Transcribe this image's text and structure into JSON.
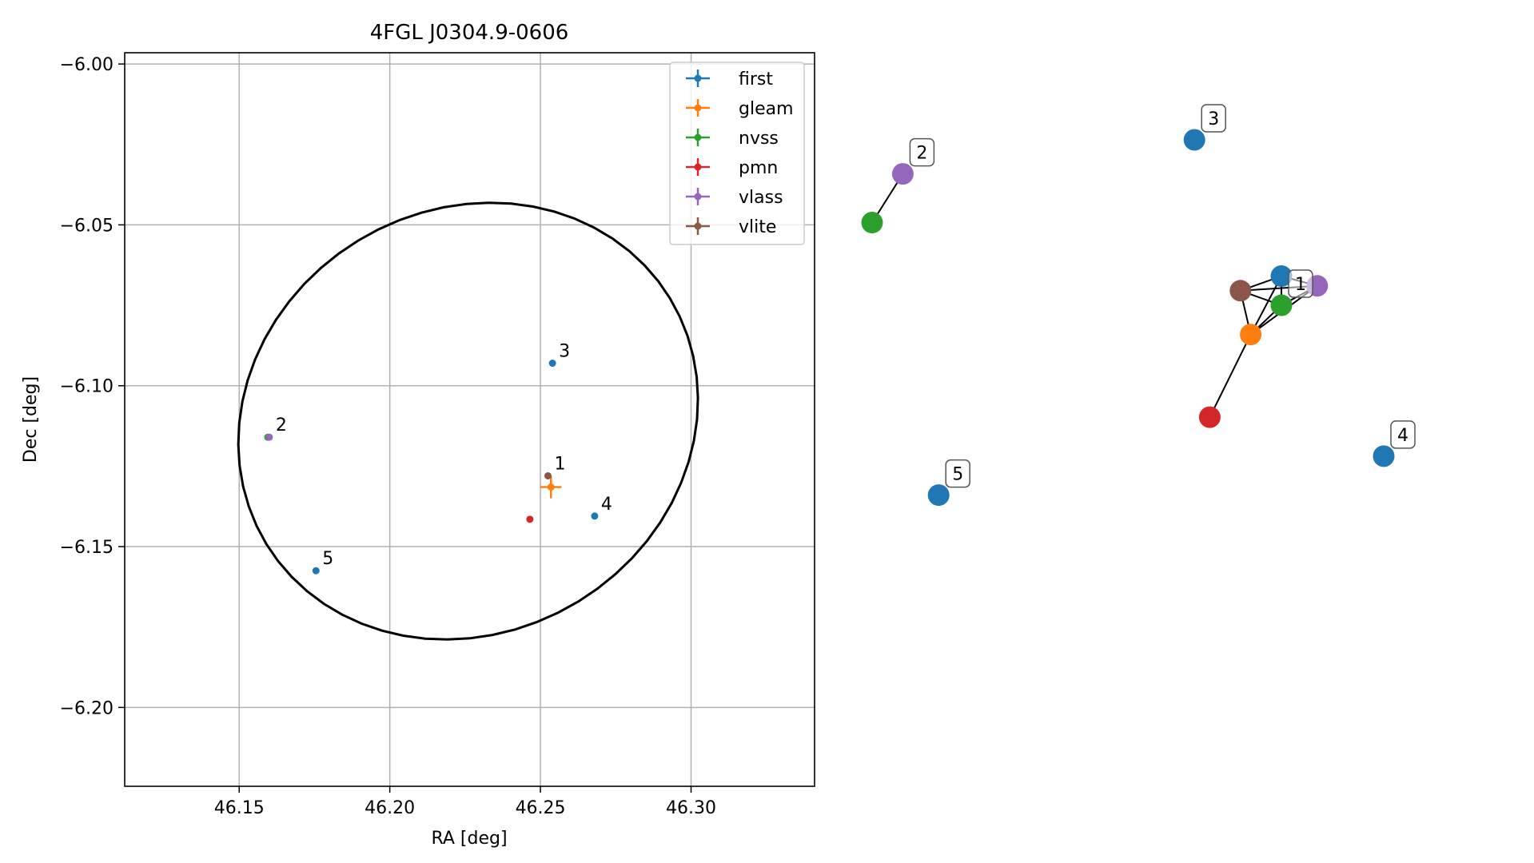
{
  "chart_data": [
    {
      "type": "scatter",
      "title": "4FGL J0304.9-0606",
      "xlabel": "RA [deg]",
      "ylabel": "Dec [deg]",
      "xlim": [
        46.112,
        46.341
      ],
      "ylim": [
        -6.2245,
        -5.9965
      ],
      "xticks": [
        46.15,
        46.2,
        46.25,
        46.3
      ],
      "xtick_labels": [
        "46.15",
        "46.20",
        "46.25",
        "46.30"
      ],
      "yticks": [
        -6.0,
        -6.05,
        -6.1,
        -6.15,
        -6.2
      ],
      "ytick_labels": [
        "−6.00",
        "−6.05",
        "−6.10",
        "−6.15",
        "−6.20"
      ],
      "grid": true,
      "legend_position": "top-right",
      "series": [
        {
          "name": "first",
          "color": "#1f77b4",
          "points": [
            {
              "x": 46.254,
              "y": -6.093,
              "xerr": 0.0006,
              "yerr": 0.0006
            },
            {
              "x": 46.268,
              "y": -6.1405,
              "xerr": 0.0006,
              "yerr": 0.0006
            },
            {
              "x": 46.1755,
              "y": -6.1575,
              "xerr": 0.0006,
              "yerr": 0.0006
            }
          ]
        },
        {
          "name": "gleam",
          "color": "#ff7f0e",
          "points": [
            {
              "x": 46.2535,
              "y": -6.1315,
              "xerr": 0.0035,
              "yerr": 0.0035
            }
          ]
        },
        {
          "name": "nvss",
          "color": "#2ca02c",
          "points": [
            {
              "x": 46.1595,
              "y": -6.116,
              "xerr": 0.0006,
              "yerr": 0.0006
            }
          ]
        },
        {
          "name": "pmn",
          "color": "#d62728",
          "points": [
            {
              "x": 46.2465,
              "y": -6.1415,
              "xerr": 0.0006,
              "yerr": 0.0006
            }
          ]
        },
        {
          "name": "vlass",
          "color": "#9467bd",
          "points": [
            {
              "x": 46.16,
              "y": -6.116,
              "xerr": 0.0006,
              "yerr": 0.0006
            }
          ]
        },
        {
          "name": "vlite",
          "color": "#8c564b",
          "points": [
            {
              "x": 46.2525,
              "y": -6.128,
              "xerr": 0.0006,
              "yerr": 0.0006
            }
          ]
        }
      ],
      "annotations": [
        {
          "text": "1",
          "x": 46.2525,
          "y": -6.128
        },
        {
          "text": "2",
          "x": 46.16,
          "y": -6.116
        },
        {
          "text": "3",
          "x": 46.254,
          "y": -6.093
        },
        {
          "text": "4",
          "x": 46.268,
          "y": -6.1405
        },
        {
          "text": "5",
          "x": 46.1755,
          "y": -6.1575
        }
      ],
      "ellipse": {
        "center_x": 46.226,
        "center_y": -6.111,
        "semi_major": 0.0775,
        "semi_minor": 0.0665,
        "angle_deg": 20,
        "color": "#000000"
      }
    },
    {
      "type": "network",
      "nodes": [
        {
          "id": "n1",
          "color": "#1f77b4",
          "x": 0.8,
          "y": 0.72
        },
        {
          "id": "n2",
          "color": "#8c564b",
          "x": 0.72,
          "y": 0.69
        },
        {
          "id": "n3",
          "color": "#2ca02c",
          "x": 0.8,
          "y": 0.66
        },
        {
          "id": "n4",
          "color": "#9467bd",
          "x": 0.87,
          "y": 0.7
        },
        {
          "id": "n5",
          "color": "#ff7f0e",
          "x": 0.74,
          "y": 0.6
        },
        {
          "id": "n6",
          "color": "#d62728",
          "x": 0.66,
          "y": 0.43
        },
        {
          "id": "n7",
          "color": "#2ca02c",
          "x": 0.0,
          "y": 0.83
        },
        {
          "id": "n8",
          "color": "#9467bd",
          "x": 0.06,
          "y": 0.93
        },
        {
          "id": "n9",
          "color": "#1f77b4",
          "x": 0.63,
          "y": 1.0
        },
        {
          "id": "n10",
          "color": "#1f77b4",
          "x": 1.0,
          "y": 0.35
        },
        {
          "id": "n11",
          "color": "#1f77b4",
          "x": 0.13,
          "y": 0.27
        }
      ],
      "edges": [
        [
          "n1",
          "n2"
        ],
        [
          "n1",
          "n3"
        ],
        [
          "n1",
          "n4"
        ],
        [
          "n1",
          "n5"
        ],
        [
          "n2",
          "n3"
        ],
        [
          "n2",
          "n4"
        ],
        [
          "n2",
          "n5"
        ],
        [
          "n3",
          "n4"
        ],
        [
          "n3",
          "n5"
        ],
        [
          "n4",
          "n5"
        ],
        [
          "n5",
          "n6"
        ],
        [
          "n7",
          "n8"
        ]
      ],
      "labels": [
        {
          "text": "1",
          "node": "n3"
        },
        {
          "text": "2",
          "node": "n8"
        },
        {
          "text": "3",
          "node": "n9"
        },
        {
          "text": "4",
          "node": "n10"
        },
        {
          "text": "5",
          "node": "n11"
        }
      ]
    }
  ]
}
